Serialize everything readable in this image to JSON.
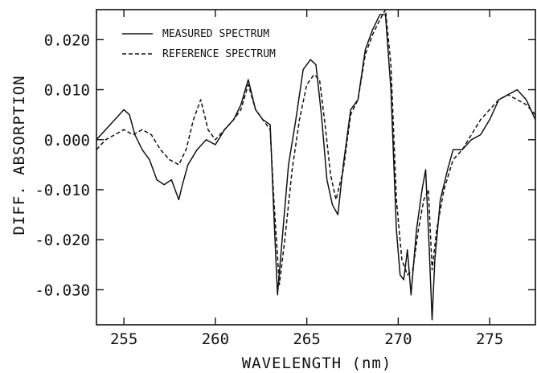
{
  "chart_data": {
    "type": "line",
    "xlabel": "WAVELENGTH (nm)",
    "ylabel": "DIFF. ABSORPTION",
    "xlim": [
      253.5,
      277.5
    ],
    "ylim": [
      -0.037,
      0.026
    ],
    "x_ticks": [
      255,
      260,
      265,
      270,
      275
    ],
    "x_tick_labels": [
      "255",
      "260",
      "265",
      "270",
      "275"
    ],
    "y_ticks": [
      -0.03,
      -0.02,
      -0.01,
      0.0,
      0.01,
      0.02
    ],
    "y_tick_labels": [
      "-0.030",
      "-0.020",
      "-0.010",
      "0.000",
      "0.010",
      "0.020"
    ],
    "grid": false,
    "legend_position": "top-left",
    "series": [
      {
        "name": "MEASURED SPECTRUM",
        "style": "solid",
        "color": "#111111",
        "x": [
          253.5,
          254.0,
          254.5,
          255.0,
          255.3,
          255.6,
          256.0,
          256.4,
          256.8,
          257.2,
          257.6,
          258.0,
          258.2,
          258.5,
          259.0,
          259.5,
          260.0,
          260.5,
          261.0,
          261.4,
          261.8,
          262.2,
          262.6,
          263.0,
          263.2,
          263.4,
          263.7,
          264.0,
          264.4,
          264.8,
          265.2,
          265.5,
          265.8,
          266.1,
          266.4,
          266.7,
          267.0,
          267.4,
          267.8,
          268.2,
          268.6,
          269.0,
          269.3,
          269.6,
          269.9,
          270.1,
          270.3,
          270.5,
          270.7,
          271.0,
          271.3,
          271.5,
          271.7,
          271.85,
          272.0,
          272.3,
          272.7,
          273.0,
          273.5,
          274.0,
          274.5,
          275.0,
          275.5,
          276.0,
          276.5,
          277.0,
          277.5
        ],
        "y": [
          0.0,
          0.002,
          0.004,
          0.006,
          0.005,
          0.001,
          -0.002,
          -0.004,
          -0.008,
          -0.009,
          -0.008,
          -0.012,
          -0.009,
          -0.005,
          -0.002,
          0.0,
          -0.001,
          0.002,
          0.004,
          0.007,
          0.012,
          0.006,
          0.004,
          0.003,
          -0.015,
          -0.031,
          -0.018,
          -0.005,
          0.004,
          0.014,
          0.016,
          0.015,
          0.005,
          -0.008,
          -0.013,
          -0.015,
          -0.005,
          0.006,
          0.008,
          0.018,
          0.022,
          0.025,
          0.025,
          0.01,
          -0.018,
          -0.027,
          -0.028,
          -0.022,
          -0.031,
          -0.018,
          -0.01,
          -0.006,
          -0.022,
          -0.036,
          -0.024,
          -0.012,
          -0.006,
          -0.002,
          -0.002,
          0.0,
          0.001,
          0.004,
          0.008,
          0.009,
          0.01,
          0.008,
          0.004
        ]
      },
      {
        "name": "REFERENCE SPECTRUM",
        "style": "dashed",
        "color": "#111111",
        "x": [
          253.5,
          254.0,
          254.5,
          255.0,
          255.5,
          256.0,
          256.5,
          257.0,
          257.5,
          258.0,
          258.4,
          258.8,
          259.2,
          259.6,
          260.0,
          260.5,
          261.0,
          261.4,
          261.8,
          262.2,
          262.6,
          263.0,
          263.2,
          263.5,
          263.8,
          264.2,
          264.6,
          265.0,
          265.4,
          265.7,
          266.0,
          266.3,
          266.6,
          267.0,
          267.4,
          267.8,
          268.2,
          268.6,
          269.0,
          269.3,
          269.6,
          269.9,
          270.2,
          270.5,
          270.8,
          271.1,
          271.4,
          271.65,
          271.85,
          272.1,
          272.5,
          273.0,
          273.5,
          274.0,
          274.5,
          275.0,
          275.5,
          276.0,
          276.5,
          277.0,
          277.5
        ],
        "y": [
          -0.002,
          0.0,
          0.001,
          0.002,
          0.001,
          0.002,
          0.001,
          -0.002,
          -0.004,
          -0.005,
          -0.002,
          0.004,
          0.008,
          0.002,
          0.0,
          0.002,
          0.004,
          0.006,
          0.011,
          0.006,
          0.004,
          0.002,
          -0.012,
          -0.029,
          -0.02,
          -0.006,
          0.004,
          0.011,
          0.013,
          0.012,
          0.003,
          -0.007,
          -0.012,
          -0.006,
          0.005,
          0.008,
          0.017,
          0.021,
          0.024,
          0.026,
          0.015,
          -0.012,
          -0.024,
          -0.027,
          -0.026,
          -0.018,
          -0.012,
          -0.01,
          -0.026,
          -0.018,
          -0.01,
          -0.004,
          -0.002,
          0.001,
          0.004,
          0.006,
          0.008,
          0.009,
          0.008,
          0.007,
          0.005
        ]
      }
    ]
  }
}
